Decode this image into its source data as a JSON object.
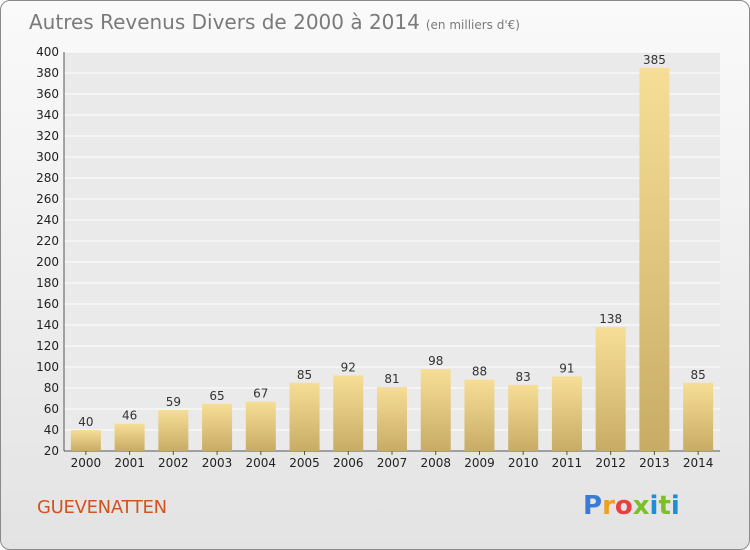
{
  "header": {
    "title": "Autres Revenus Divers de 2000 à 2014",
    "subtitle": "(en milliers d'€)"
  },
  "footer": {
    "commune": "GUEVENATTEN",
    "logo_letters": [
      "P",
      "r",
      "o",
      "x",
      "i",
      "t",
      "i"
    ]
  },
  "colors": {
    "bar_light": "#f7de96",
    "bar_dark": "#c8ac66",
    "commune": "#d2531e",
    "logo": [
      "#3a7bd5",
      "#f0a020",
      "#e84040",
      "#7cbf2a",
      "#1e8fd5",
      "#7cbf2a",
      "#1e8fd5"
    ]
  },
  "chart_data": {
    "type": "bar",
    "title": "Autres Revenus Divers de 2000 à 2014",
    "subtitle": "(en milliers d'€)",
    "categories": [
      "2000",
      "2001",
      "2002",
      "2003",
      "2004",
      "2005",
      "2006",
      "2007",
      "2008",
      "2009",
      "2010",
      "2011",
      "2012",
      "2013",
      "2014"
    ],
    "values": [
      40,
      46,
      59,
      65,
      67,
      85,
      92,
      81,
      98,
      88,
      83,
      91,
      138,
      385,
      85
    ],
    "ylim": [
      20,
      400
    ],
    "yticks": [
      20,
      40,
      60,
      80,
      100,
      120,
      140,
      160,
      180,
      200,
      220,
      240,
      260,
      280,
      300,
      320,
      340,
      360,
      380,
      400
    ],
    "grid": "horizontal",
    "xlabel": "",
    "ylabel": ""
  }
}
